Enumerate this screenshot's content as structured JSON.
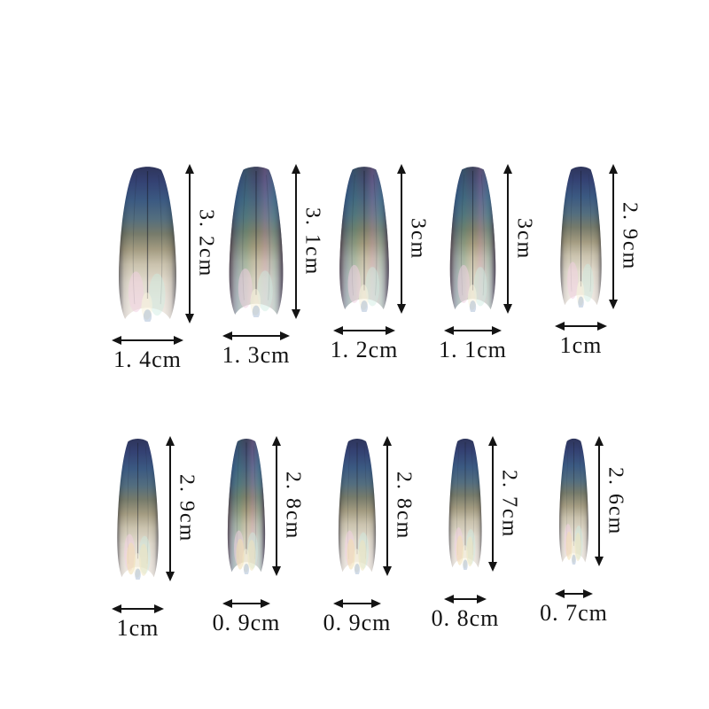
{
  "palette": {
    "background": "#ffffff",
    "annotation_color": "#141414",
    "nail_dark_navy": "#29386c",
    "nail_teal": "#31517b",
    "nail_olive": "#9d9579",
    "nail_pearl": "#eee8e1",
    "nail_pink_sheen": "#f2cfe2",
    "nail_mint_sheen": "#cdeae0",
    "nail_gold_sheen": "#f0dfae"
  },
  "units": "cm",
  "rows": [
    {
      "nails": [
        {
          "height_label": "3. 2cm",
          "width_label": "1. 4cm",
          "height_cm": 3.2,
          "width_cm": 1.4
        },
        {
          "height_label": "3. 1cm",
          "width_label": "1. 3cm",
          "height_cm": 3.1,
          "width_cm": 1.3
        },
        {
          "height_label": "3cm",
          "width_label": "1. 2cm",
          "height_cm": 3.0,
          "width_cm": 1.2
        },
        {
          "height_label": "3cm",
          "width_label": "1. 1cm",
          "height_cm": 3.0,
          "width_cm": 1.1
        },
        {
          "height_label": "2. 9cm",
          "width_label": "1cm",
          "height_cm": 2.9,
          "width_cm": 1.0
        }
      ]
    },
    {
      "nails": [
        {
          "height_label": "2. 9cm",
          "width_label": "1cm",
          "height_cm": 2.9,
          "width_cm": 1.0
        },
        {
          "height_label": "2. 8cm",
          "width_label": "0. 9cm",
          "height_cm": 2.8,
          "width_cm": 0.9
        },
        {
          "height_label": "2. 8cm",
          "width_label": "0. 9cm",
          "height_cm": 2.8,
          "width_cm": 0.9
        },
        {
          "height_label": "2. 7cm",
          "width_label": "0. 8cm",
          "height_cm": 2.7,
          "width_cm": 0.8
        },
        {
          "height_label": "2. 6cm",
          "width_label": "0. 7cm",
          "height_cm": 2.6,
          "width_cm": 0.7
        }
      ]
    }
  ]
}
